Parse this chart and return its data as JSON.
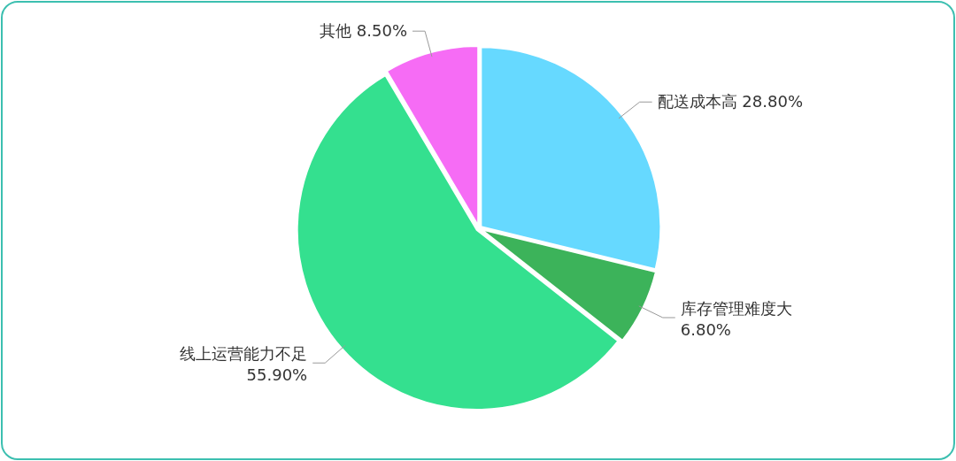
{
  "chart_data": {
    "type": "pie",
    "categories": [
      "配送成本高",
      "库存管理难度大",
      "线上运营能力不足",
      "其他"
    ],
    "values": [
      28.8,
      6.8,
      55.9,
      8.5
    ],
    "value_labels": [
      "28.80%",
      "6.80%",
      "55.90%",
      "8.50%"
    ],
    "colors": [
      "#66d9ff",
      "#3cb35a",
      "#34e08f",
      "#f66cf5"
    ]
  }
}
